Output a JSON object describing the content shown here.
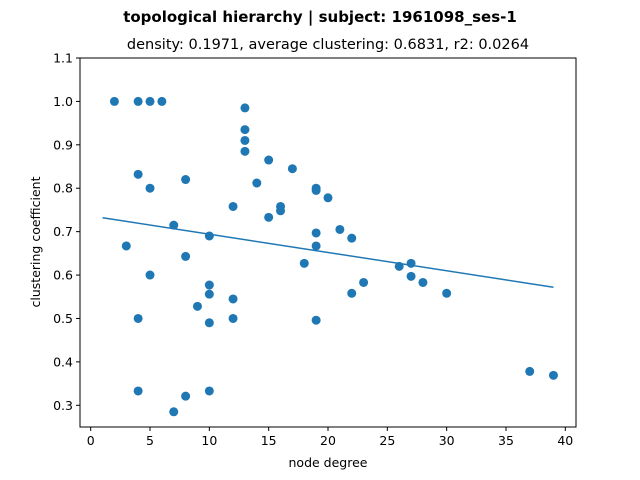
{
  "chart_data": {
    "type": "scatter",
    "suptitle": "topological hierarchy | subject: 1961098_ses-1",
    "title": "density: 0.1971,  average clustering: 0.6831,  r2: 0.0264",
    "xlabel": "node degree",
    "ylabel": "clustering coefficient",
    "xlim": [
      -0.9,
      40.9
    ],
    "ylim": [
      0.25,
      1.1
    ],
    "xticks": [
      0,
      5,
      10,
      15,
      20,
      25,
      30,
      35,
      40
    ],
    "yticks": [
      0.3,
      0.4,
      0.5,
      0.6,
      0.7,
      0.8,
      0.9,
      1.0,
      1.1
    ],
    "grid": false,
    "color": "#1f77b4",
    "points": [
      [
        2,
        1.0
      ],
      [
        4,
        1.0
      ],
      [
        5,
        1.0
      ],
      [
        6,
        1.0
      ],
      [
        13,
        0.985
      ],
      [
        13,
        0.935
      ],
      [
        13,
        0.91
      ],
      [
        13,
        0.885
      ],
      [
        15,
        0.865
      ],
      [
        17,
        0.845
      ],
      [
        4,
        0.832
      ],
      [
        8,
        0.82
      ],
      [
        14,
        0.812
      ],
      [
        5,
        0.8
      ],
      [
        19,
        0.8
      ],
      [
        19,
        0.795
      ],
      [
        20,
        0.778
      ],
      [
        12,
        0.758
      ],
      [
        16,
        0.758
      ],
      [
        16,
        0.748
      ],
      [
        15,
        0.733
      ],
      [
        7,
        0.715
      ],
      [
        21,
        0.705
      ],
      [
        19,
        0.697
      ],
      [
        10,
        0.69
      ],
      [
        22,
        0.685
      ],
      [
        3,
        0.667
      ],
      [
        19,
        0.667
      ],
      [
        8,
        0.643
      ],
      [
        18,
        0.627
      ],
      [
        27,
        0.627
      ],
      [
        26,
        0.62
      ],
      [
        5,
        0.6
      ],
      [
        27,
        0.597
      ],
      [
        23,
        0.583
      ],
      [
        28,
        0.583
      ],
      [
        10,
        0.577
      ],
      [
        22,
        0.558
      ],
      [
        10,
        0.556
      ],
      [
        30,
        0.558
      ],
      [
        12,
        0.545
      ],
      [
        9,
        0.528
      ],
      [
        4,
        0.5
      ],
      [
        12,
        0.5
      ],
      [
        19,
        0.496
      ],
      [
        10,
        0.49
      ],
      [
        37,
        0.378
      ],
      [
        39,
        0.369
      ],
      [
        4,
        0.333
      ],
      [
        10,
        0.333
      ],
      [
        8,
        0.321
      ],
      [
        7,
        0.285
      ]
    ],
    "fit_line": {
      "x": [
        1,
        39
      ],
      "y": [
        0.732,
        0.572
      ]
    }
  }
}
